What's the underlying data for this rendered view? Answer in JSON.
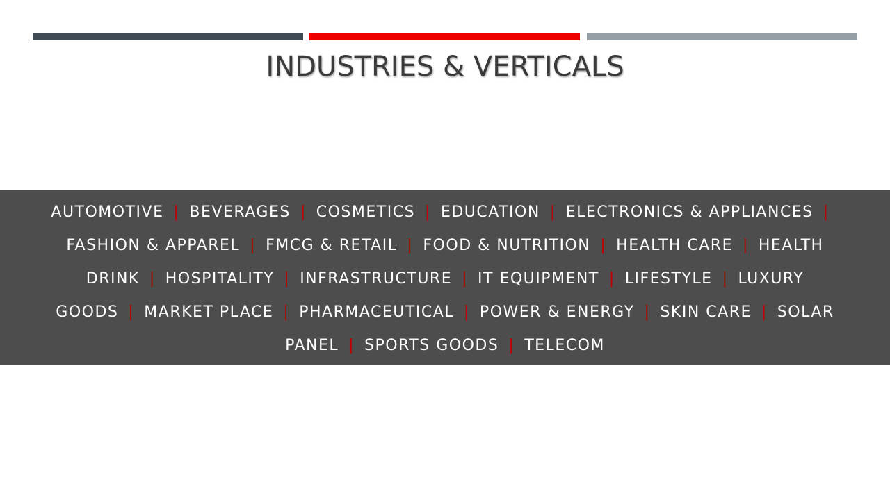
{
  "slide": {
    "title": "INDUSTRIES & VERTICALS",
    "separator": "|",
    "lines": [
      [
        "AUTOMOTIVE",
        "BEVERAGES",
        "COSMETICS",
        "EDUCATION",
        "ELECTRONICS & APPLIANCES",
        ""
      ],
      [
        "FASHION & APPAREL",
        "FMCG & RETAIL",
        "FOOD & NUTRITION",
        "HEALTH CARE",
        "HEALTH"
      ],
      [
        "DRINK",
        "HOSPITALITY",
        "INFRASTRUCTURE",
        "IT EQUIPMENT",
        "LIFESTYLE",
        "LUXURY"
      ],
      [
        "GOODS",
        "MARKET PLACE",
        "PHARMACEUTICAL",
        "POWER & ENERGY",
        "SKIN CARE",
        "SOLAR"
      ],
      [
        "PANEL",
        "SPORTS GOODS",
        "TELECOM"
      ]
    ]
  },
  "colors": {
    "bar_dark": "#404a52",
    "bar_accent": "#ee0000",
    "bar_light": "#969ea6",
    "band_background": "#4d4d4d",
    "separator": "#c00000",
    "item_text": "#ffffff",
    "title_text": "#3a3a3a"
  }
}
